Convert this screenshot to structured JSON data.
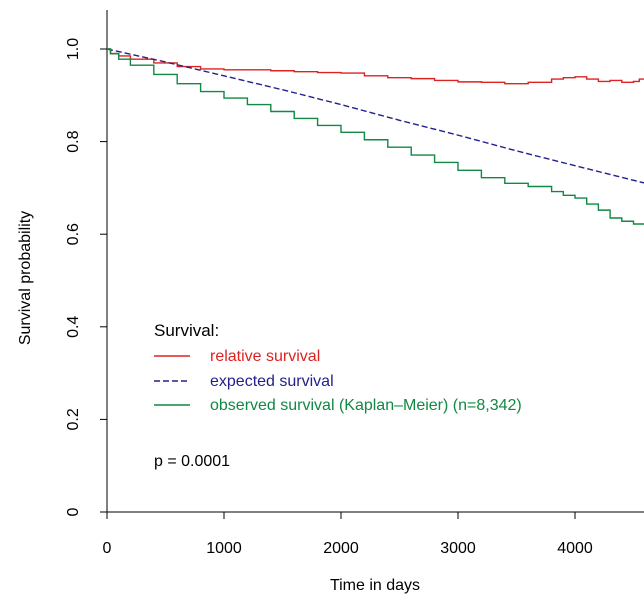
{
  "chart_data": {
    "type": "line",
    "title": "",
    "xlabel": "Time in days",
    "ylabel": "Survival probability",
    "xlim": [
      0,
      4650
    ],
    "ylim": [
      0,
      1.08
    ],
    "x_ticks": [
      0,
      1000,
      2000,
      3000,
      4000
    ],
    "x_tick_labels": [
      "0",
      "1000",
      "2000",
      "3000",
      "4000"
    ],
    "y_ticks": [
      0,
      0.2,
      0.4,
      0.6,
      0.8,
      1.0
    ],
    "y_tick_labels": [
      "0",
      "0.2",
      "0.4",
      "0.6",
      "0.8",
      "1.0"
    ],
    "grid": false,
    "legend": {
      "title": "Survival:",
      "placement": "bottom-left",
      "entries": [
        "relative survival",
        "expected survival",
        "observed survival (Kaplan–Meier) (n=8,342)"
      ]
    },
    "annotation": "p = 0.0001",
    "series": [
      {
        "name": "relative survival",
        "color": "#dd2222",
        "dash": "solid",
        "step": true,
        "x": [
          0,
          30,
          100,
          200,
          400,
          600,
          800,
          1000,
          1200,
          1400,
          1600,
          1800,
          2000,
          2200,
          2400,
          2600,
          2800,
          3000,
          3200,
          3400,
          3600,
          3800,
          3900,
          4000,
          4100,
          4200,
          4300,
          4400,
          4500,
          4550,
          4600,
          4620,
          4650
        ],
        "y": [
          1.0,
          0.99,
          0.985,
          0.978,
          0.97,
          0.962,
          0.957,
          0.955,
          0.955,
          0.953,
          0.951,
          0.949,
          0.948,
          0.942,
          0.938,
          0.936,
          0.932,
          0.929,
          0.928,
          0.925,
          0.928,
          0.935,
          0.938,
          0.94,
          0.935,
          0.93,
          0.932,
          0.928,
          0.93,
          0.935,
          0.92,
          0.905,
          0.905
        ]
      },
      {
        "name": "expected survival",
        "color": "#22228c",
        "dash": "dashed",
        "step": false,
        "x": [
          0,
          500,
          1000,
          1500,
          2000,
          2500,
          3000,
          3500,
          4000,
          4650
        ],
        "y": [
          1.0,
          0.972,
          0.942,
          0.912,
          0.88,
          0.846,
          0.814,
          0.78,
          0.748,
          0.707
        ]
      },
      {
        "name": "observed survival (Kaplan–Meier) (n=8,342)",
        "color": "#118844",
        "dash": "solid",
        "step": true,
        "x": [
          0,
          30,
          100,
          200,
          400,
          600,
          800,
          1000,
          1200,
          1400,
          1600,
          1800,
          2000,
          2200,
          2400,
          2600,
          2800,
          3000,
          3200,
          3400,
          3600,
          3800,
          3900,
          4000,
          4100,
          4200,
          4300,
          4400,
          4500,
          4600,
          4620,
          4650
        ],
        "y": [
          1.0,
          0.99,
          0.978,
          0.965,
          0.945,
          0.925,
          0.908,
          0.894,
          0.88,
          0.865,
          0.85,
          0.835,
          0.82,
          0.804,
          0.788,
          0.771,
          0.755,
          0.738,
          0.722,
          0.71,
          0.703,
          0.692,
          0.684,
          0.678,
          0.665,
          0.652,
          0.635,
          0.628,
          0.622,
          0.622,
          0.605,
          0.605
        ]
      }
    ]
  }
}
